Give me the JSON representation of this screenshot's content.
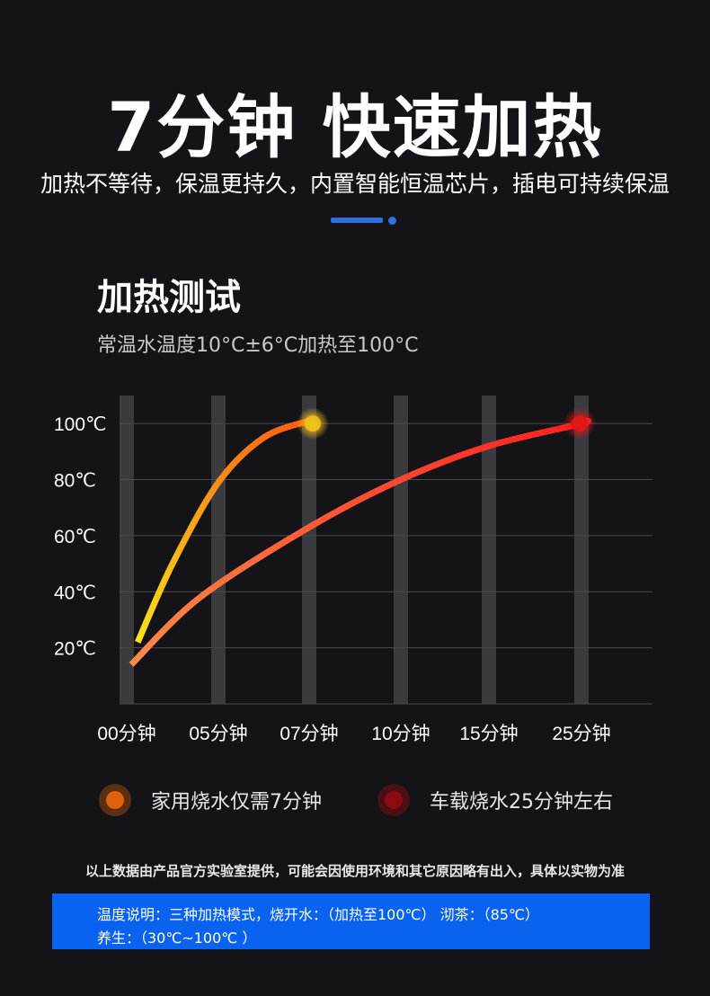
{
  "header": {
    "headline": "7分钟 快速加热",
    "subline": "加热不等待，保温更持久，内置智能恒温芯片，插电可持续保温"
  },
  "section": {
    "title": "加热测试",
    "subtitle": "常温水温度10°C±6°C加热至100°C"
  },
  "chart_data": {
    "type": "line",
    "x_categories": [
      "00分钟",
      "05分钟",
      "07分钟",
      "10分钟",
      "15分钟",
      "25分钟"
    ],
    "y_tick_labels": [
      "20℃",
      "40℃",
      "60℃",
      "80℃",
      "100℃"
    ],
    "y_ticks": [
      20,
      40,
      60,
      80,
      100
    ],
    "ylim": [
      0,
      110
    ],
    "grid": true,
    "legend_position": "bottom",
    "series": [
      {
        "name": "家用烧水仅需7分钟",
        "color_start": "#f8e21e",
        "color_end": "#ff5a12",
        "marker_color": "#f2c21a",
        "points": [
          [
            0.12,
            22
          ],
          [
            0.5,
            50
          ],
          [
            1.0,
            79
          ],
          [
            1.5,
            95
          ],
          [
            2.0,
            101
          ]
        ]
      },
      {
        "name": "车载烧水25分钟左右",
        "color_start": "#ff8a4a",
        "color_end": "#ff1f1f",
        "marker_color": "#e01818",
        "points": [
          [
            0.05,
            14
          ],
          [
            0.8,
            38
          ],
          [
            2.0,
            63
          ],
          [
            3.0,
            80
          ],
          [
            4.0,
            92
          ],
          [
            5.0,
            100
          ],
          [
            5.2,
            101
          ]
        ]
      }
    ]
  },
  "legend": [
    {
      "label": "家用烧水仅需7分钟",
      "ring_color": "#5a3010",
      "dot_color": "#e0620c"
    },
    {
      "label": "车载烧水25分钟左右",
      "ring_color": "#4a1014",
      "dot_color": "#8a0c12"
    }
  ],
  "disclaimer": "以上数据由产品官方实验室提供，可能会因使用环境和其它原因略有出入，具体以实物为准",
  "note": {
    "line1": "温度说明：三种加热模式，烧开水：（加热至100℃） 沏茶：（85℃）",
    "line2": "养生：（30℃~100℃ ）"
  },
  "colors": {
    "accent": "#2f6fe0",
    "note_bg": "#0a62f0",
    "background": "#141418"
  }
}
